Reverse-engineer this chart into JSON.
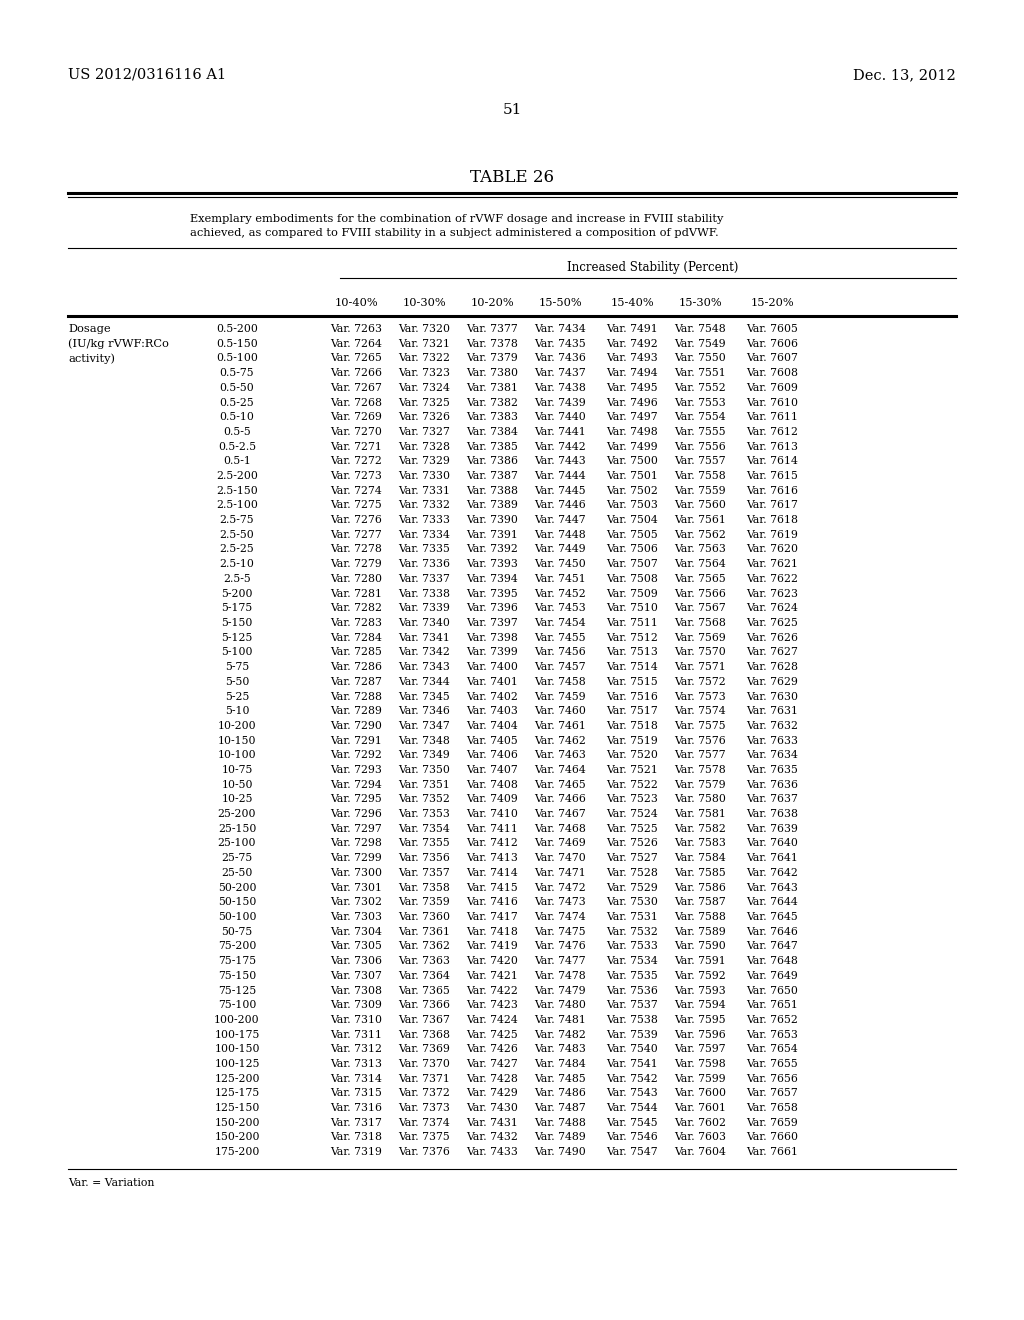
{
  "title": "TABLE 26",
  "subtitle_line1": "Exemplary embodiments for the combination of rVWF dosage and increase in FVIII stability",
  "subtitle_line2": "achieved, as compared to FVIII stability in a subject administered a composition of pdVWF.",
  "header_group": "Increased Stability (Percent)",
  "columns": [
    "10-40%",
    "10-30%",
    "10-20%",
    "15-50%",
    "15-40%",
    "15-30%",
    "15-20%"
  ],
  "left_label1": "Dosage",
  "left_label2": "(IU/kg rVWF:RCo",
  "left_label3": "activity)",
  "page_left": "US 2012/0316116 A1",
  "page_right": "Dec. 13, 2012",
  "page_num": "51",
  "footnote": "Var. = Variation",
  "rows": [
    [
      "0.5-200",
      "Var. 7263",
      "Var. 7320",
      "Var. 7377",
      "Var. 7434",
      "Var. 7491",
      "Var. 7548",
      "Var. 7605"
    ],
    [
      "0.5-150",
      "Var. 7264",
      "Var. 7321",
      "Var. 7378",
      "Var. 7435",
      "Var. 7492",
      "Var. 7549",
      "Var. 7606"
    ],
    [
      "0.5-100",
      "Var. 7265",
      "Var. 7322",
      "Var. 7379",
      "Var. 7436",
      "Var. 7493",
      "Var. 7550",
      "Var. 7607"
    ],
    [
      "0.5-75",
      "Var. 7266",
      "Var. 7323",
      "Var. 7380",
      "Var. 7437",
      "Var. 7494",
      "Var. 7551",
      "Var. 7608"
    ],
    [
      "0.5-50",
      "Var. 7267",
      "Var. 7324",
      "Var. 7381",
      "Var. 7438",
      "Var. 7495",
      "Var. 7552",
      "Var. 7609"
    ],
    [
      "0.5-25",
      "Var. 7268",
      "Var. 7325",
      "Var. 7382",
      "Var. 7439",
      "Var. 7496",
      "Var. 7553",
      "Var. 7610"
    ],
    [
      "0.5-10",
      "Var. 7269",
      "Var. 7326",
      "Var. 7383",
      "Var. 7440",
      "Var. 7497",
      "Var. 7554",
      "Var. 7611"
    ],
    [
      "0.5-5",
      "Var. 7270",
      "Var. 7327",
      "Var. 7384",
      "Var. 7441",
      "Var. 7498",
      "Var. 7555",
      "Var. 7612"
    ],
    [
      "0.5-2.5",
      "Var. 7271",
      "Var. 7328",
      "Var. 7385",
      "Var. 7442",
      "Var. 7499",
      "Var. 7556",
      "Var. 7613"
    ],
    [
      "0.5-1",
      "Var. 7272",
      "Var. 7329",
      "Var. 7386",
      "Var. 7443",
      "Var. 7500",
      "Var. 7557",
      "Var. 7614"
    ],
    [
      "2.5-200",
      "Var. 7273",
      "Var. 7330",
      "Var. 7387",
      "Var. 7444",
      "Var. 7501",
      "Var. 7558",
      "Var. 7615"
    ],
    [
      "2.5-150",
      "Var. 7274",
      "Var. 7331",
      "Var. 7388",
      "Var. 7445",
      "Var. 7502",
      "Var. 7559",
      "Var. 7616"
    ],
    [
      "2.5-100",
      "Var. 7275",
      "Var. 7332",
      "Var. 7389",
      "Var. 7446",
      "Var. 7503",
      "Var. 7560",
      "Var. 7617"
    ],
    [
      "2.5-75",
      "Var. 7276",
      "Var. 7333",
      "Var. 7390",
      "Var. 7447",
      "Var. 7504",
      "Var. 7561",
      "Var. 7618"
    ],
    [
      "2.5-50",
      "Var. 7277",
      "Var. 7334",
      "Var. 7391",
      "Var. 7448",
      "Var. 7505",
      "Var. 7562",
      "Var. 7619"
    ],
    [
      "2.5-25",
      "Var. 7278",
      "Var. 7335",
      "Var. 7392",
      "Var. 7449",
      "Var. 7506",
      "Var. 7563",
      "Var. 7620"
    ],
    [
      "2.5-10",
      "Var. 7279",
      "Var. 7336",
      "Var. 7393",
      "Var. 7450",
      "Var. 7507",
      "Var. 7564",
      "Var. 7621"
    ],
    [
      "2.5-5",
      "Var. 7280",
      "Var. 7337",
      "Var. 7394",
      "Var. 7451",
      "Var. 7508",
      "Var. 7565",
      "Var. 7622"
    ],
    [
      "5-200",
      "Var. 7281",
      "Var. 7338",
      "Var. 7395",
      "Var. 7452",
      "Var. 7509",
      "Var. 7566",
      "Var. 7623"
    ],
    [
      "5-175",
      "Var. 7282",
      "Var. 7339",
      "Var. 7396",
      "Var. 7453",
      "Var. 7510",
      "Var. 7567",
      "Var. 7624"
    ],
    [
      "5-150",
      "Var. 7283",
      "Var. 7340",
      "Var. 7397",
      "Var. 7454",
      "Var. 7511",
      "Var. 7568",
      "Var. 7625"
    ],
    [
      "5-125",
      "Var. 7284",
      "Var. 7341",
      "Var. 7398",
      "Var. 7455",
      "Var. 7512",
      "Var. 7569",
      "Var. 7626"
    ],
    [
      "5-100",
      "Var. 7285",
      "Var. 7342",
      "Var. 7399",
      "Var. 7456",
      "Var. 7513",
      "Var. 7570",
      "Var. 7627"
    ],
    [
      "5-75",
      "Var. 7286",
      "Var. 7343",
      "Var. 7400",
      "Var. 7457",
      "Var. 7514",
      "Var. 7571",
      "Var. 7628"
    ],
    [
      "5-50",
      "Var. 7287",
      "Var. 7344",
      "Var. 7401",
      "Var. 7458",
      "Var. 7515",
      "Var. 7572",
      "Var. 7629"
    ],
    [
      "5-25",
      "Var. 7288",
      "Var. 7345",
      "Var. 7402",
      "Var. 7459",
      "Var. 7516",
      "Var. 7573",
      "Var. 7630"
    ],
    [
      "5-10",
      "Var. 7289",
      "Var. 7346",
      "Var. 7403",
      "Var. 7460",
      "Var. 7517",
      "Var. 7574",
      "Var. 7631"
    ],
    [
      "10-200",
      "Var. 7290",
      "Var. 7347",
      "Var. 7404",
      "Var. 7461",
      "Var. 7518",
      "Var. 7575",
      "Var. 7632"
    ],
    [
      "10-150",
      "Var. 7291",
      "Var. 7348",
      "Var. 7405",
      "Var. 7462",
      "Var. 7519",
      "Var. 7576",
      "Var. 7633"
    ],
    [
      "10-100",
      "Var. 7292",
      "Var. 7349",
      "Var. 7406",
      "Var. 7463",
      "Var. 7520",
      "Var. 7577",
      "Var. 7634"
    ],
    [
      "10-75",
      "Var. 7293",
      "Var. 7350",
      "Var. 7407",
      "Var. 7464",
      "Var. 7521",
      "Var. 7578",
      "Var. 7635"
    ],
    [
      "10-50",
      "Var. 7294",
      "Var. 7351",
      "Var. 7408",
      "Var. 7465",
      "Var. 7522",
      "Var. 7579",
      "Var. 7636"
    ],
    [
      "10-25",
      "Var. 7295",
      "Var. 7352",
      "Var. 7409",
      "Var. 7466",
      "Var. 7523",
      "Var. 7580",
      "Var. 7637"
    ],
    [
      "25-200",
      "Var. 7296",
      "Var. 7353",
      "Var. 7410",
      "Var. 7467",
      "Var. 7524",
      "Var. 7581",
      "Var. 7638"
    ],
    [
      "25-150",
      "Var. 7297",
      "Var. 7354",
      "Var. 7411",
      "Var. 7468",
      "Var. 7525",
      "Var. 7582",
      "Var. 7639"
    ],
    [
      "25-100",
      "Var. 7298",
      "Var. 7355",
      "Var. 7412",
      "Var. 7469",
      "Var. 7526",
      "Var. 7583",
      "Var. 7640"
    ],
    [
      "25-75",
      "Var. 7299",
      "Var. 7356",
      "Var. 7413",
      "Var. 7470",
      "Var. 7527",
      "Var. 7584",
      "Var. 7641"
    ],
    [
      "25-50",
      "Var. 7300",
      "Var. 7357",
      "Var. 7414",
      "Var. 7471",
      "Var. 7528",
      "Var. 7585",
      "Var. 7642"
    ],
    [
      "50-200",
      "Var. 7301",
      "Var. 7358",
      "Var. 7415",
      "Var. 7472",
      "Var. 7529",
      "Var. 7586",
      "Var. 7643"
    ],
    [
      "50-150",
      "Var. 7302",
      "Var. 7359",
      "Var. 7416",
      "Var. 7473",
      "Var. 7530",
      "Var. 7587",
      "Var. 7644"
    ],
    [
      "50-100",
      "Var. 7303",
      "Var. 7360",
      "Var. 7417",
      "Var. 7474",
      "Var. 7531",
      "Var. 7588",
      "Var. 7645"
    ],
    [
      "50-75",
      "Var. 7304",
      "Var. 7361",
      "Var. 7418",
      "Var. 7475",
      "Var. 7532",
      "Var. 7589",
      "Var. 7646"
    ],
    [
      "75-200",
      "Var. 7305",
      "Var. 7362",
      "Var. 7419",
      "Var. 7476",
      "Var. 7533",
      "Var. 7590",
      "Var. 7647"
    ],
    [
      "75-175",
      "Var. 7306",
      "Var. 7363",
      "Var. 7420",
      "Var. 7477",
      "Var. 7534",
      "Var. 7591",
      "Var. 7648"
    ],
    [
      "75-150",
      "Var. 7307",
      "Var. 7364",
      "Var. 7421",
      "Var. 7478",
      "Var. 7535",
      "Var. 7592",
      "Var. 7649"
    ],
    [
      "75-125",
      "Var. 7308",
      "Var. 7365",
      "Var. 7422",
      "Var. 7479",
      "Var. 7536",
      "Var. 7593",
      "Var. 7650"
    ],
    [
      "75-100",
      "Var. 7309",
      "Var. 7366",
      "Var. 7423",
      "Var. 7480",
      "Var. 7537",
      "Var. 7594",
      "Var. 7651"
    ],
    [
      "100-200",
      "Var. 7310",
      "Var. 7367",
      "Var. 7424",
      "Var. 7481",
      "Var. 7538",
      "Var. 7595",
      "Var. 7652"
    ],
    [
      "100-175",
      "Var. 7311",
      "Var. 7368",
      "Var. 7425",
      "Var. 7482",
      "Var. 7539",
      "Var. 7596",
      "Var. 7653"
    ],
    [
      "100-150",
      "Var. 7312",
      "Var. 7369",
      "Var. 7426",
      "Var. 7483",
      "Var. 7540",
      "Var. 7597",
      "Var. 7654"
    ],
    [
      "100-125",
      "Var. 7313",
      "Var. 7370",
      "Var. 7427",
      "Var. 7484",
      "Var. 7541",
      "Var. 7598",
      "Var. 7655"
    ],
    [
      "125-200",
      "Var. 7314",
      "Var. 7371",
      "Var. 7428",
      "Var. 7485",
      "Var. 7542",
      "Var. 7599",
      "Var. 7656"
    ],
    [
      "125-175",
      "Var. 7315",
      "Var. 7372",
      "Var. 7429",
      "Var. 7486",
      "Var. 7543",
      "Var. 7600",
      "Var. 7657"
    ],
    [
      "125-150",
      "Var. 7316",
      "Var. 7373",
      "Var. 7430",
      "Var. 7487",
      "Var. 7544",
      "Var. 7601",
      "Var. 7658"
    ],
    [
      "150-200",
      "Var. 7317",
      "Var. 7374",
      "Var. 7431",
      "Var. 7488",
      "Var. 7545",
      "Var. 7602",
      "Var. 7659"
    ],
    [
      "150-200",
      "Var. 7318",
      "Var. 7375",
      "Var. 7432",
      "Var. 7489",
      "Var. 7546",
      "Var. 7603",
      "Var. 7660"
    ],
    [
      "175-200",
      "Var. 7319",
      "Var. 7376",
      "Var. 7433",
      "Var. 7490",
      "Var. 7547",
      "Var. 7604",
      "Var. 7661"
    ]
  ]
}
